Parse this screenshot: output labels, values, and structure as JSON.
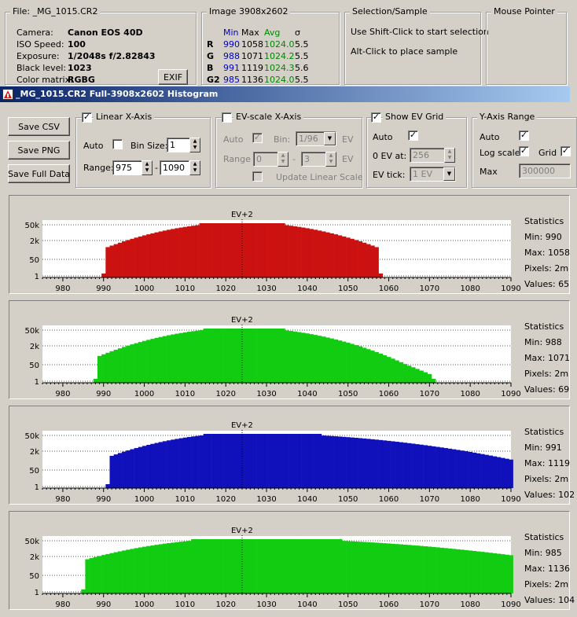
{
  "file_box": {
    "title": "File: _MG_1015.CR2",
    "rows": [
      {
        "label": "Camera:",
        "value": "Canon EOS 40D"
      },
      {
        "label": "ISO Speed:",
        "value": "100"
      },
      {
        "label": "Exposure:",
        "value": "1/2048s f/2.82843"
      },
      {
        "label": "Black level:",
        "value": "1023"
      },
      {
        "label": "Color matrix:",
        "value": "RGBG"
      }
    ],
    "exif_label": "EXIF"
  },
  "image_box": {
    "title": "Image 3908x2602",
    "headers": [
      "Min",
      "Max",
      "Avg",
      "σ"
    ],
    "rows": [
      {
        "ch": "R",
        "min": "990",
        "max": "1058",
        "avg": "1024.0",
        "sigma": "5.5"
      },
      {
        "ch": "G",
        "min": "988",
        "max": "1071",
        "avg": "1024.2",
        "sigma": "5.5"
      },
      {
        "ch": "B",
        "min": "991",
        "max": "1119",
        "avg": "1024.3",
        "sigma": "5.6"
      },
      {
        "ch": "G2",
        "min": "985",
        "max": "1136",
        "avg": "1024.0",
        "sigma": "5.5"
      }
    ]
  },
  "selection_box": {
    "title": "Selection/Sample",
    "line1": "Use Shift-Click to start selection",
    "line2": "Alt-Click to place sample"
  },
  "mouse_box": {
    "title": "Mouse Pointer"
  },
  "window_title": "_MG_1015.CR2 Full-3908x2602 Histogram",
  "buttons": {
    "save_csv": "Save CSV",
    "save_png": "Save PNG",
    "save_full": "Save Full Data"
  },
  "linear_axis": {
    "title": "Linear X-Axis",
    "auto_label": "Auto",
    "bin_size_label": "Bin Size:",
    "bin_size": "1",
    "range_label": "Range:",
    "range_from": "975",
    "range_to": "1090"
  },
  "ev_axis": {
    "title": "EV-scale X-Axis",
    "auto_label": "Auto",
    "bin_label": "Bin:",
    "bin_value": "1/96",
    "ev_unit": "EV",
    "range_label": "Range",
    "range_from": "0",
    "range_to": "3",
    "update_label": "Update Linear Scale"
  },
  "ev_grid": {
    "title": "Show EV Grid",
    "auto_label": "Auto",
    "zero_ev_label": "0 EV at:",
    "zero_ev_value": "256",
    "tick_label": "EV tick:",
    "tick_value": "1 EV"
  },
  "y_axis": {
    "title": "Y-Axis Range",
    "auto_label": "Auto",
    "log_label": "Log scale",
    "grid_label": "Grid",
    "max_label": "Max",
    "max_value": "300000"
  },
  "ev_marker": "EV+2",
  "y_ticks": [
    "50k",
    "2k",
    "50",
    "1"
  ],
  "x_ticks": [
    "980",
    "990",
    "1000",
    "1010",
    "1020",
    "1030",
    "1040",
    "1050",
    "1060",
    "1070",
    "1080",
    "1090"
  ],
  "colors": {
    "red": "#cc1111",
    "green": "#11cc11",
    "blue": "#1111bb"
  },
  "chart_data": [
    {
      "type": "bar",
      "channel": "R",
      "color": "#cc1111",
      "x_range": [
        975,
        1090
      ],
      "y_scale": "log",
      "min": 990,
      "max": 1058,
      "mean": 1024.0,
      "sigma": 5.5,
      "left_tail": 0,
      "right_tail": 0,
      "stats": {
        "title": "Statistics",
        "min": "Min: 990",
        "max": "Max: 1058",
        "pixels": "Pixels: 2m",
        "values": "Values: 65"
      }
    },
    {
      "type": "bar",
      "channel": "G",
      "color": "#11cc11",
      "x_range": [
        975,
        1090
      ],
      "y_scale": "log",
      "min": 988,
      "max": 1071,
      "mean": 1024.2,
      "sigma": 5.5,
      "left_tail": 0,
      "right_tail": 0,
      "stats": {
        "title": "Statistics",
        "min": "Min: 988",
        "max": "Max: 1071",
        "pixels": "Pixels: 2m",
        "values": "Values: 69"
      }
    },
    {
      "type": "bar",
      "channel": "B",
      "color": "#1111bb",
      "x_range": [
        975,
        1090
      ],
      "y_scale": "log",
      "min": 991,
      "max": 1119,
      "mean": 1024.3,
      "sigma": 5.6,
      "left_tail": 0,
      "right_tail": 1,
      "stats": {
        "title": "Statistics",
        "min": "Min: 991",
        "max": "Max: 1119",
        "pixels": "Pixels: 2m",
        "values": "Values: 102"
      }
    },
    {
      "type": "bar",
      "channel": "G2",
      "color": "#11cc11",
      "x_range": [
        975,
        1090
      ],
      "y_scale": "log",
      "min": 985,
      "max": 1136,
      "mean": 1024.0,
      "sigma": 5.5,
      "left_tail": 0.5,
      "right_tail": 1.2,
      "stats": {
        "title": "Statistics",
        "min": "Min: 985",
        "max": "Max: 1136",
        "pixels": "Pixels: 2m",
        "values": "Values: 104"
      }
    }
  ]
}
